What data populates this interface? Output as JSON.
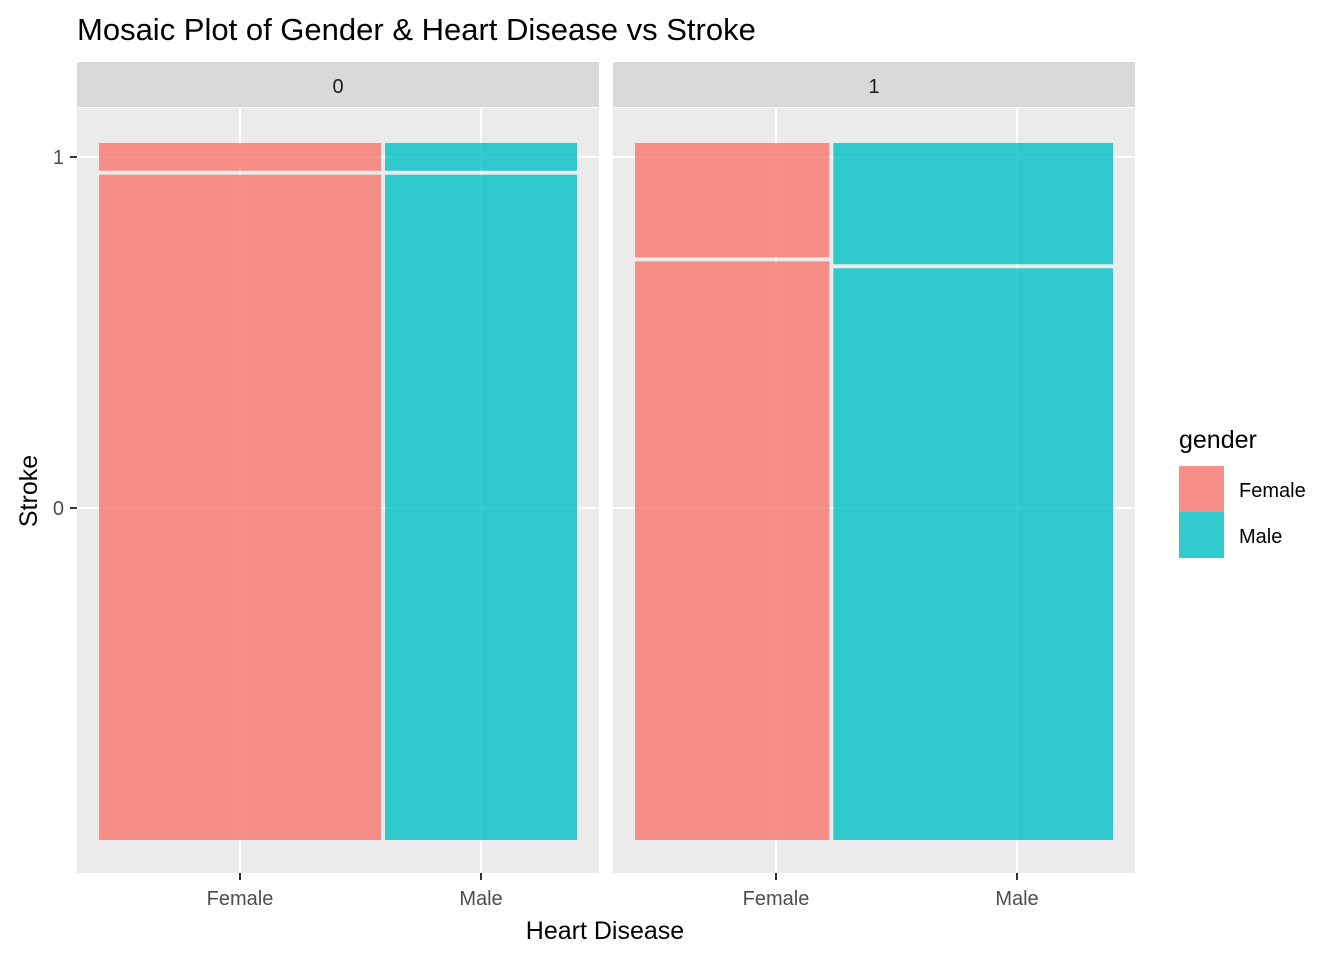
{
  "chart_data": {
    "type": "mosaic",
    "title": "Mosaic Plot of Gender & Heart Disease vs Stroke",
    "xlabel": "Heart Disease",
    "ylabel": "Stroke",
    "facet_variable": "heart_disease",
    "facets": [
      {
        "label": "0",
        "columns": [
          {
            "category": "Female",
            "width_fraction": 0.595,
            "stroke_1_fraction": 0.04,
            "stroke_0_fraction": 0.96
          },
          {
            "category": "Male",
            "width_fraction": 0.405,
            "stroke_1_fraction": 0.04,
            "stroke_0_fraction": 0.96
          }
        ]
      },
      {
        "label": "1",
        "columns": [
          {
            "category": "Female",
            "width_fraction": 0.41,
            "stroke_1_fraction": 0.165,
            "stroke_0_fraction": 0.835
          },
          {
            "category": "Male",
            "width_fraction": 0.59,
            "stroke_1_fraction": 0.175,
            "stroke_0_fraction": 0.825
          }
        ]
      }
    ],
    "x_tick_labels": [
      "Female",
      "Male"
    ],
    "y_tick_labels": [
      "0",
      "1"
    ],
    "legend": {
      "title": "gender",
      "position": "right",
      "entries": [
        {
          "label": "Female",
          "color": "#F8766D"
        },
        {
          "label": "Male",
          "color": "#00BFC4"
        }
      ]
    },
    "grid": true,
    "panel_background": "#EBEBEB",
    "strip_background": "#D9D9D9",
    "fill_opacity": 0.8
  }
}
